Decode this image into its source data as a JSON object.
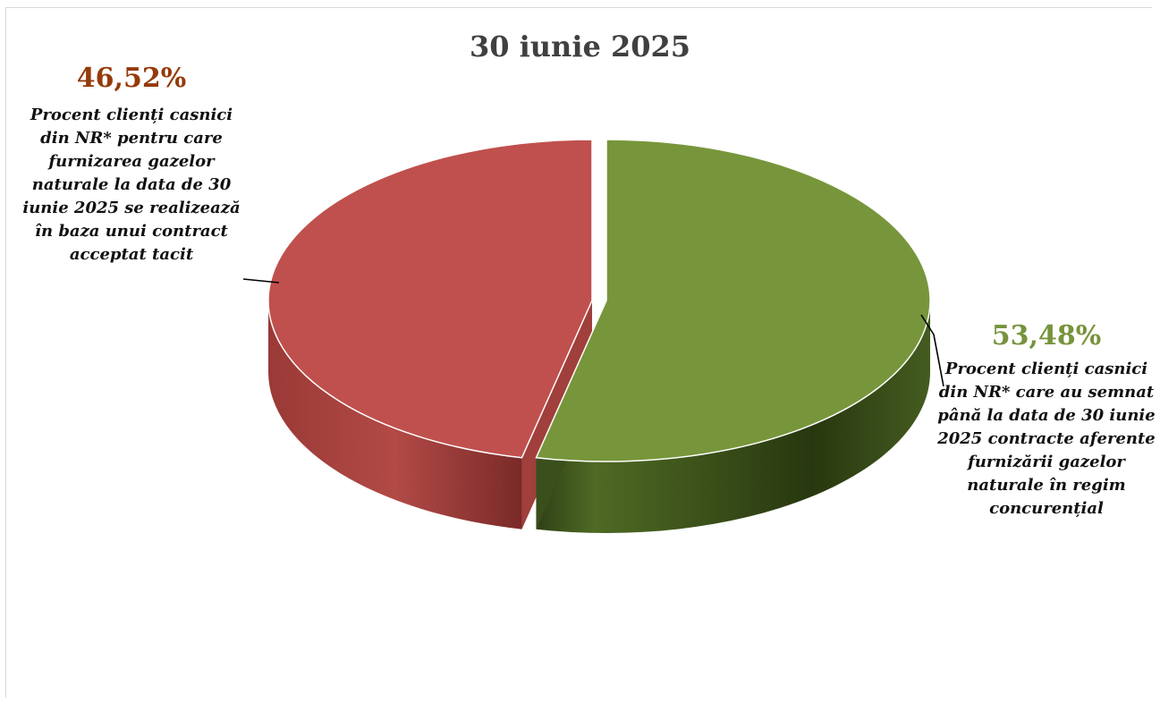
{
  "chart_data": {
    "type": "pie",
    "title": "30 iunie 2025",
    "slices": [
      {
        "value_label": "53,48%",
        "value": 53.48,
        "label": "Procent clienți casnici din NR* care au semnat până la data de 30 iunie 2025 contracte aferente furnizării gazelor naturale în regim concurențial",
        "color": "#77963b"
      },
      {
        "value_label": "46,52%",
        "value": 46.52,
        "label": "Procent clienți casnici din NR* pentru care furnizarea gazelor naturale la data de 30 iunie 2025 se realizează în baza unui contract acceptat tacit",
        "color": "#c0504d"
      }
    ],
    "value_label_colors": [
      "#77933c",
      "#953a0a"
    ]
  }
}
